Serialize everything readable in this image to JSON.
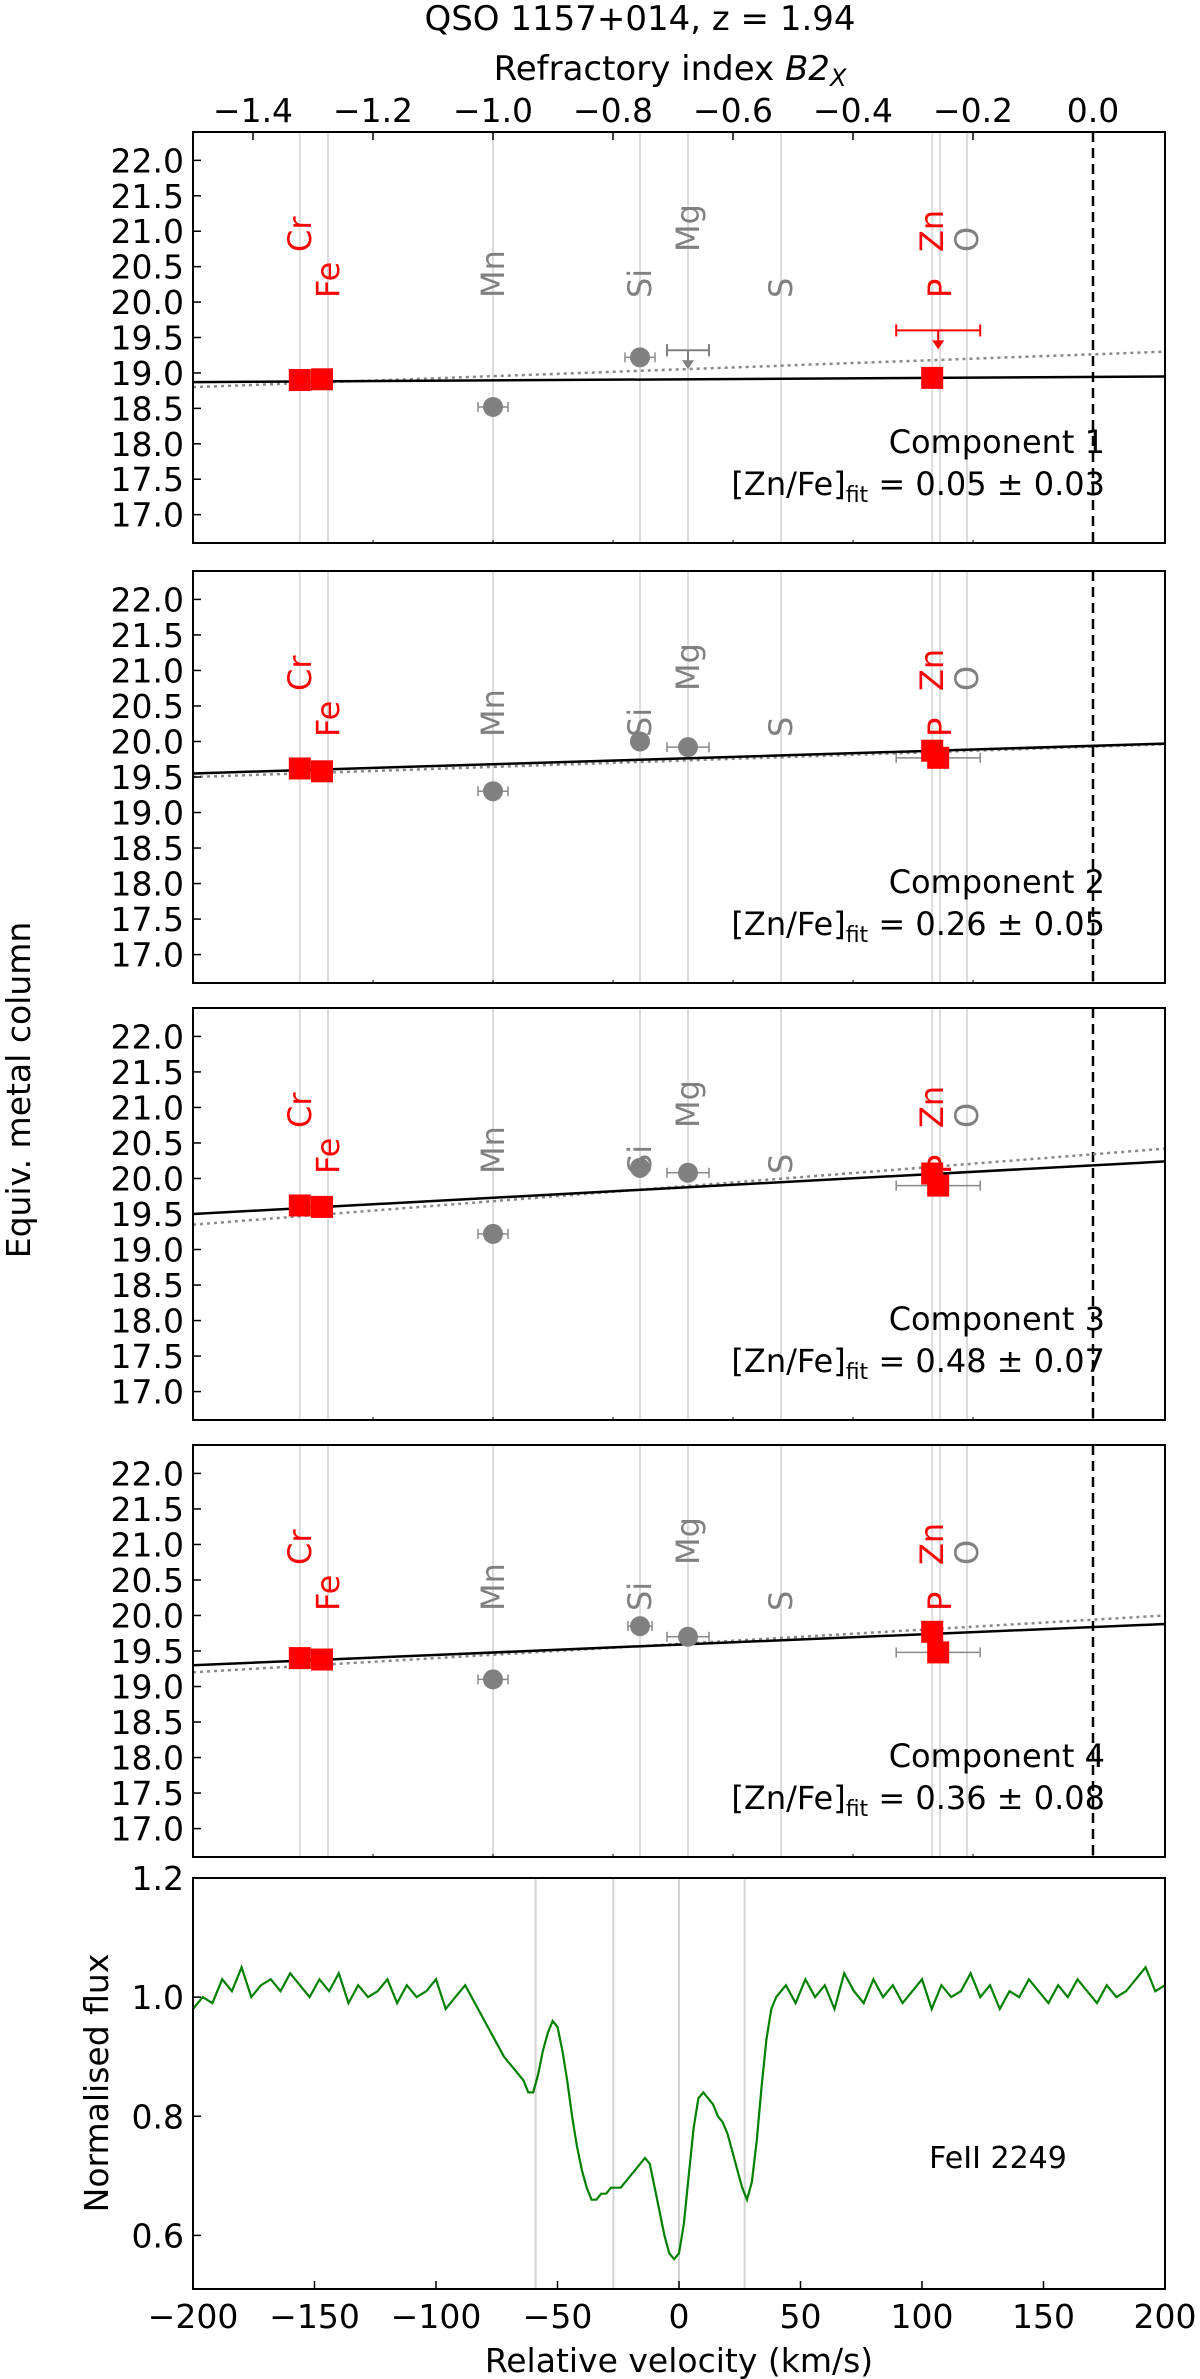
{
  "chart_data": {
    "title": "QSO 1157+014, z = 1.94",
    "top_axis_label_main": "Refractory index ",
    "top_axis_label_italic": "B2",
    "top_axis_label_sub": "X",
    "shared_ylabel": "Equiv. metal column",
    "top_ticks": [
      -1.4,
      -1.2,
      -1.0,
      -0.8,
      -0.6,
      -0.4,
      -0.2,
      0.0
    ],
    "top_tick_labels": [
      "−1.4",
      "−1.2",
      "−1.0",
      "−0.8",
      "−0.6",
      "−0.4",
      "−0.2",
      "0.0"
    ],
    "xlim": [
      -1.5,
      0.12
    ],
    "ylim": [
      16.6,
      22.4
    ],
    "yticks": [
      17.0,
      17.5,
      18.0,
      18.5,
      19.0,
      19.5,
      20.0,
      20.5,
      21.0,
      21.5,
      22.0
    ],
    "ytick_labels": [
      "17.0",
      "17.5",
      "18.0",
      "18.5",
      "19.0",
      "19.5",
      "20.0",
      "20.5",
      "21.0",
      "21.5",
      "22.0"
    ],
    "elements": [
      {
        "name": "Cr",
        "x": -1.322,
        "color": "#ff0000",
        "group": "red",
        "stack": 2
      },
      {
        "name": "Fe",
        "x": -1.275,
        "color": "#ff0000",
        "group": "red",
        "stack": 1
      },
      {
        "name": "Mn",
        "x": -1.0,
        "color": "#808080",
        "group": "grey",
        "stack": 1
      },
      {
        "name": "Si",
        "x": -0.755,
        "color": "#808080",
        "group": "grey",
        "stack": 1
      },
      {
        "name": "Mg",
        "x": -0.675,
        "color": "#808080",
        "group": "grey",
        "stack": 2
      },
      {
        "name": "S",
        "x": -0.52,
        "color": "#808080",
        "group": "grey",
        "stack": 1
      },
      {
        "name": "Zn",
        "x": -0.268,
        "color": "#ff0000",
        "group": "red",
        "stack": 2
      },
      {
        "name": "P",
        "x": -0.255,
        "color": "#ff0000",
        "group": "red",
        "stack": 1
      },
      {
        "name": "O",
        "x": -0.21,
        "color": "#808080",
        "group": "grey",
        "stack": 2
      }
    ],
    "panels": [
      {
        "type": "scatter",
        "component_label": "Component 1",
        "fit_prefix": "[Zn/Fe]",
        "fit_sub": "fit",
        "fit_value": " = 0.05 ± 0.03",
        "fit_line": {
          "y_start": 18.87,
          "y_end": 18.95
        },
        "dotted_line": {
          "y_start": 18.8,
          "y_end": 19.3
        },
        "red_points": [
          {
            "el": "Cr",
            "x": -1.322,
            "y": 18.9
          },
          {
            "el": "Fe",
            "x": -1.285,
            "y": 18.91
          },
          {
            "el": "Zn",
            "x": -0.268,
            "y": 18.93
          }
        ],
        "grey_points": [
          {
            "el": "Mn",
            "x": -1.0,
            "y": 18.52,
            "xerr": 0.025
          },
          {
            "el": "Si",
            "x": -0.755,
            "y": 19.22,
            "xerr": 0.025
          }
        ],
        "upper_limits": [
          {
            "el": "Mg",
            "x": -0.675,
            "y": 19.32,
            "xerr": 0.035,
            "color": "#808080"
          },
          {
            "el": "Zn",
            "x": -0.258,
            "y": 19.6,
            "xerr": 0.07,
            "color": "#ff0000"
          }
        ],
        "extra_xerr": []
      },
      {
        "type": "scatter",
        "component_label": "Component 2",
        "fit_prefix": "[Zn/Fe]",
        "fit_sub": "fit",
        "fit_value": " = 0.26 ± 0.05",
        "fit_line": {
          "y_start": 19.55,
          "y_end": 19.97
        },
        "dotted_line": {
          "y_start": 19.5,
          "y_end": 19.96
        },
        "red_points": [
          {
            "el": "Cr",
            "x": -1.322,
            "y": 19.62
          },
          {
            "el": "Fe",
            "x": -1.285,
            "y": 19.58
          },
          {
            "el": "Zn",
            "x": -0.268,
            "y": 19.87
          },
          {
            "el": "P",
            "x": -0.258,
            "y": 19.77
          }
        ],
        "grey_points": [
          {
            "el": "Mn",
            "x": -1.0,
            "y": 19.3,
            "xerr": 0.025
          },
          {
            "el": "Si",
            "x": -0.755,
            "y": 20.0,
            "xerr": 0
          },
          {
            "el": "Mg",
            "x": -0.675,
            "y": 19.92,
            "xerr": 0.035
          }
        ],
        "upper_limits": [],
        "extra_xerr": [
          {
            "x": -0.258,
            "y": 19.77,
            "xerr": 0.07
          }
        ]
      },
      {
        "type": "scatter",
        "component_label": "Component 3",
        "fit_prefix": "[Zn/Fe]",
        "fit_sub": "fit",
        "fit_value": " = 0.48 ± 0.07",
        "fit_line": {
          "y_start": 19.5,
          "y_end": 20.24
        },
        "dotted_line": {
          "y_start": 19.35,
          "y_end": 20.42
        },
        "red_points": [
          {
            "el": "Cr",
            "x": -1.322,
            "y": 19.62
          },
          {
            "el": "Fe",
            "x": -1.285,
            "y": 19.6
          },
          {
            "el": "Zn",
            "x": -0.268,
            "y": 20.07
          },
          {
            "el": "P",
            "x": -0.258,
            "y": 19.9
          }
        ],
        "grey_points": [
          {
            "el": "Mn",
            "x": -1.0,
            "y": 19.22,
            "xerr": 0.025
          },
          {
            "el": "Si",
            "x": -0.755,
            "y": 20.15,
            "xerr": 0
          },
          {
            "el": "Mg",
            "x": -0.675,
            "y": 20.08,
            "xerr": 0.035
          }
        ],
        "upper_limits": [],
        "extra_xerr": [
          {
            "x": -0.258,
            "y": 19.9,
            "xerr": 0.07
          }
        ]
      },
      {
        "type": "scatter",
        "component_label": "Component 4",
        "fit_prefix": "[Zn/Fe]",
        "fit_sub": "fit",
        "fit_value": " = 0.36 ± 0.08",
        "fit_line": {
          "y_start": 19.3,
          "y_end": 19.88
        },
        "dotted_line": {
          "y_start": 19.2,
          "y_end": 20.0
        },
        "red_points": [
          {
            "el": "Cr",
            "x": -1.322,
            "y": 19.4
          },
          {
            "el": "Fe",
            "x": -1.285,
            "y": 19.38
          },
          {
            "el": "Zn",
            "x": -0.268,
            "y": 19.77
          },
          {
            "el": "P",
            "x": -0.258,
            "y": 19.48
          }
        ],
        "grey_points": [
          {
            "el": "Mn",
            "x": -1.0,
            "y": 19.1,
            "xerr": 0.025
          },
          {
            "el": "Si",
            "x": -0.755,
            "y": 19.85,
            "xerr": 0.02
          },
          {
            "el": "Mg",
            "x": -0.675,
            "y": 19.7,
            "xerr": 0.035
          }
        ],
        "upper_limits": [],
        "extra_xerr": [
          {
            "x": -0.258,
            "y": 19.48,
            "xerr": 0.07
          }
        ]
      },
      {
        "type": "line",
        "xlabel": "Relative velocity (km/s)",
        "ylabel": "Normalised flux",
        "annotation": "FeII 2249",
        "xlim": [
          -200,
          200
        ],
        "ylim": [
          0.51,
          1.2
        ],
        "xticks": [
          -200,
          -150,
          -100,
          -50,
          0,
          50,
          100,
          150,
          200
        ],
        "xtick_labels": [
          "−200",
          "−150",
          "−100",
          "−50",
          "0",
          "50",
          "100",
          "150",
          "200"
        ],
        "yticks": [
          0.6,
          0.8,
          1.0,
          1.2
        ],
        "ytick_labels": [
          "0.6",
          "0.8",
          "1.0",
          "1.2"
        ],
        "component_velocities": [
          -59,
          -27,
          0,
          27
        ],
        "line_color": "#008000",
        "spectrum": {
          "x": [
            -200,
            -196,
            -192,
            -188,
            -184,
            -180,
            -176,
            -172,
            -168,
            -164,
            -160,
            -156,
            -152,
            -148,
            -144,
            -140,
            -136,
            -132,
            -128,
            -124,
            -120,
            -116,
            -112,
            -108,
            -104,
            -100,
            -96,
            -92,
            -88,
            -84,
            -80,
            -76,
            -72,
            -68,
            -64,
            -62,
            -60,
            -58,
            -56,
            -54,
            -52,
            -50,
            -48,
            -46,
            -44,
            -42,
            -40,
            -38,
            -36,
            -34,
            -32,
            -30,
            -28,
            -26,
            -24,
            -22,
            -20,
            -18,
            -16,
            -14,
            -12,
            -10,
            -8,
            -6,
            -4,
            -2,
            0,
            2,
            4,
            6,
            8,
            10,
            12,
            14,
            16,
            18,
            20,
            22,
            24,
            26,
            28,
            30,
            32,
            34,
            36,
            38,
            40,
            44,
            48,
            52,
            56,
            60,
            64,
            68,
            72,
            76,
            80,
            84,
            88,
            92,
            96,
            100,
            104,
            108,
            112,
            116,
            120,
            124,
            128,
            132,
            136,
            140,
            144,
            148,
            152,
            156,
            160,
            164,
            168,
            172,
            176,
            180,
            184,
            188,
            192,
            196,
            200
          ],
          "y": [
            0.98,
            1.0,
            0.99,
            1.03,
            1.01,
            1.05,
            1.0,
            1.02,
            1.03,
            1.01,
            1.04,
            1.02,
            1.0,
            1.03,
            1.01,
            1.04,
            0.99,
            1.02,
            1.0,
            1.01,
            1.03,
            0.99,
            1.02,
            1.0,
            1.01,
            1.03,
            0.98,
            1.0,
            1.02,
            0.99,
            0.96,
            0.93,
            0.9,
            0.88,
            0.86,
            0.84,
            0.84,
            0.87,
            0.91,
            0.94,
            0.96,
            0.95,
            0.91,
            0.86,
            0.8,
            0.75,
            0.71,
            0.68,
            0.66,
            0.66,
            0.67,
            0.67,
            0.68,
            0.68,
            0.68,
            0.69,
            0.7,
            0.71,
            0.72,
            0.73,
            0.72,
            0.68,
            0.64,
            0.6,
            0.57,
            0.56,
            0.57,
            0.62,
            0.7,
            0.78,
            0.83,
            0.84,
            0.83,
            0.82,
            0.8,
            0.79,
            0.77,
            0.74,
            0.71,
            0.68,
            0.66,
            0.69,
            0.76,
            0.85,
            0.93,
            0.98,
            1.0,
            1.02,
            0.99,
            1.03,
            1.0,
            1.02,
            0.98,
            1.04,
            1.01,
            0.99,
            1.03,
            1.0,
            1.02,
            0.99,
            1.01,
            1.03,
            0.98,
            1.02,
            1.0,
            1.01,
            1.04,
            1.0,
            1.02,
            0.98,
            1.01,
            1.0,
            1.03,
            1.01,
            0.99,
            1.02,
            1.0,
            1.03,
            1.01,
            0.99,
            1.02,
            1.0,
            1.01,
            1.03,
            1.05,
            1.01,
            1.02
          ]
        }
      }
    ]
  }
}
